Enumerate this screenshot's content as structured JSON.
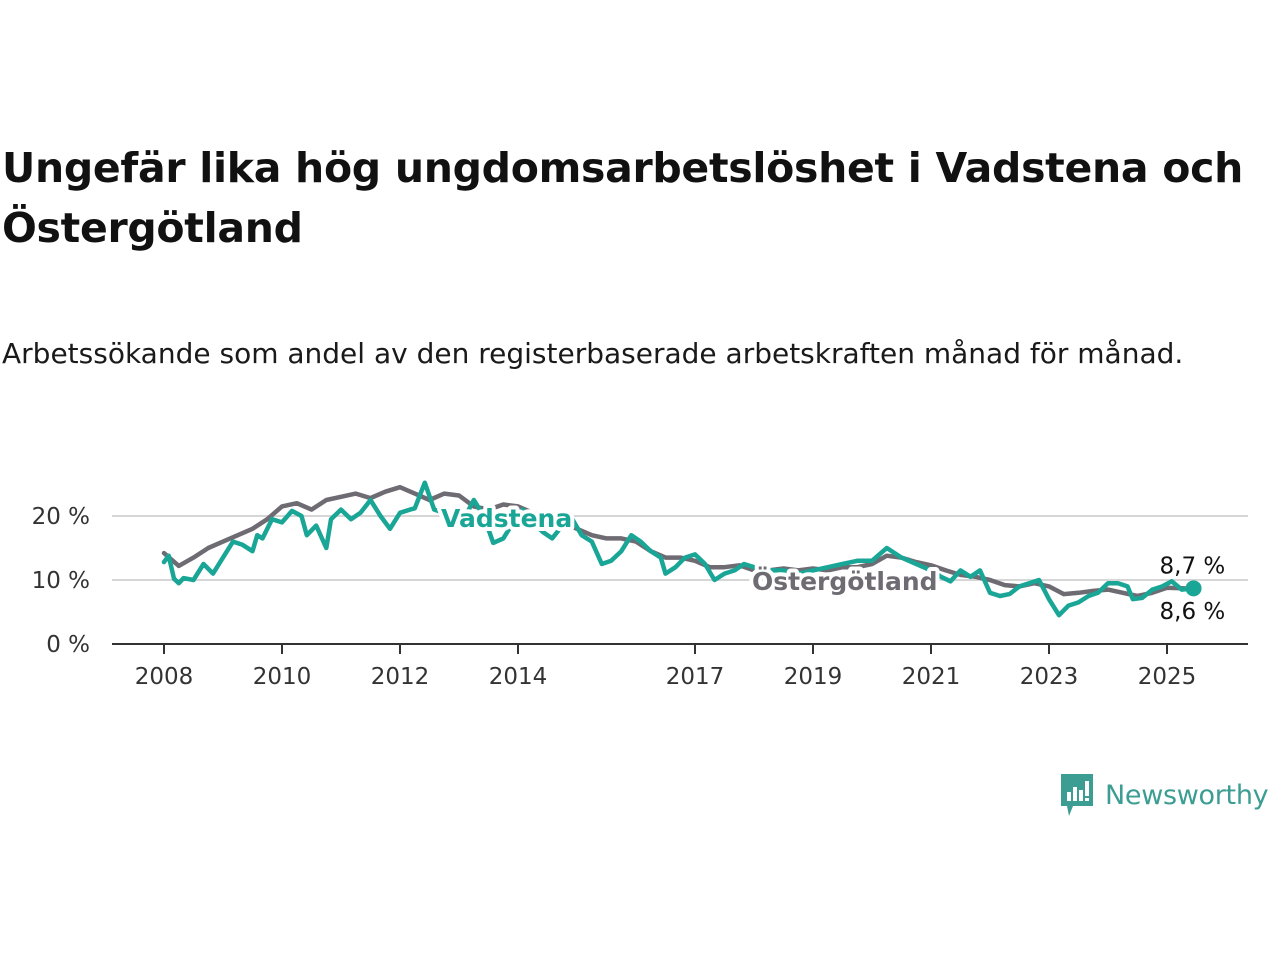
{
  "title": "Ungefär lika hög ungdomsarbetslöshet i Vadstena och Östergötland",
  "subtitle": "Arbetssökande som andel av den registerbaserade arbetskraften månad för månad.",
  "brand": {
    "name": "Newsworthy",
    "icon": "newsworthy-chart-logo-icon",
    "color": "#3c9d93"
  },
  "chart_data": {
    "type": "line",
    "y_ticks": [
      0,
      10,
      20
    ],
    "y_tick_labels": [
      "0 %",
      "10 %",
      "20 %"
    ],
    "x_ticks": [
      2008,
      2010,
      2012,
      2014,
      2017,
      2019,
      2021,
      2023,
      2025
    ],
    "x_tick_labels": [
      "2008",
      "2010",
      "2012",
      "2014",
      "2017",
      "2019",
      "2021",
      "2023",
      "2025"
    ],
    "x_range": [
      2006.75,
      2025.5
    ],
    "y_range": [
      0,
      20
    ],
    "grid": "horizontal",
    "series": [
      {
        "name": "Östergötland",
        "color": "#6e6b73",
        "end_label": "8,6 %",
        "points": [
          [
            2008.0,
            14.2
          ],
          [
            2008.25,
            12.2
          ],
          [
            2008.5,
            13.5
          ],
          [
            2008.75,
            15.0
          ],
          [
            2009.0,
            16.0
          ],
          [
            2009.25,
            17.0
          ],
          [
            2009.5,
            18.0
          ],
          [
            2009.75,
            19.5
          ],
          [
            2010.0,
            21.5
          ],
          [
            2010.25,
            22.0
          ],
          [
            2010.5,
            21.0
          ],
          [
            2010.75,
            22.5
          ],
          [
            2011.0,
            23.0
          ],
          [
            2011.25,
            23.5
          ],
          [
            2011.5,
            22.8
          ],
          [
            2011.75,
            23.8
          ],
          [
            2012.0,
            24.5
          ],
          [
            2012.25,
            23.5
          ],
          [
            2012.5,
            22.5
          ],
          [
            2012.75,
            23.5
          ],
          [
            2013.0,
            23.2
          ],
          [
            2013.25,
            21.5
          ],
          [
            2013.5,
            21.0
          ],
          [
            2013.75,
            21.8
          ],
          [
            2014.0,
            21.5
          ],
          [
            2014.25,
            20.5
          ],
          [
            2014.5,
            20.0
          ],
          [
            2014.75,
            19.0
          ],
          [
            2015.0,
            18.0
          ],
          [
            2015.25,
            17.0
          ],
          [
            2015.5,
            16.5
          ],
          [
            2015.75,
            16.5
          ],
          [
            2016.0,
            16.0
          ],
          [
            2016.25,
            14.5
          ],
          [
            2016.5,
            13.5
          ],
          [
            2016.75,
            13.5
          ],
          [
            2017.0,
            13.0
          ],
          [
            2017.25,
            12.0
          ],
          [
            2017.5,
            12.0
          ],
          [
            2017.75,
            12.3
          ],
          [
            2018.0,
            11.5
          ],
          [
            2018.25,
            11.5
          ],
          [
            2018.5,
            11.8
          ],
          [
            2018.75,
            11.5
          ],
          [
            2019.0,
            11.8
          ],
          [
            2019.25,
            11.5
          ],
          [
            2019.5,
            12.0
          ],
          [
            2019.75,
            12.0
          ],
          [
            2020.0,
            12.5
          ],
          [
            2020.25,
            13.8
          ],
          [
            2020.5,
            13.5
          ],
          [
            2020.75,
            12.8
          ],
          [
            2021.0,
            12.3
          ],
          [
            2021.25,
            11.5
          ],
          [
            2021.5,
            10.8
          ],
          [
            2021.75,
            10.5
          ],
          [
            2022.0,
            10.0
          ],
          [
            2022.25,
            9.2
          ],
          [
            2022.5,
            9.0
          ],
          [
            2022.75,
            9.5
          ],
          [
            2023.0,
            9.0
          ],
          [
            2023.25,
            7.8
          ],
          [
            2023.5,
            8.0
          ],
          [
            2023.75,
            8.3
          ],
          [
            2024.0,
            8.5
          ],
          [
            2024.25,
            8.0
          ],
          [
            2024.5,
            7.5
          ],
          [
            2024.75,
            8.0
          ],
          [
            2025.0,
            8.8
          ],
          [
            2025.25,
            8.7
          ],
          [
            2025.45,
            8.6
          ]
        ]
      },
      {
        "name": "Vadstena",
        "color": "#1aa696",
        "end_label": "8,7 %",
        "points": [
          [
            2008.0,
            12.8
          ],
          [
            2008.08,
            13.8
          ],
          [
            2008.17,
            10.2
          ],
          [
            2008.25,
            9.5
          ],
          [
            2008.33,
            10.3
          ],
          [
            2008.5,
            10.0
          ],
          [
            2008.67,
            12.5
          ],
          [
            2008.83,
            11.0
          ],
          [
            2009.0,
            13.5
          ],
          [
            2009.17,
            16.0
          ],
          [
            2009.33,
            15.5
          ],
          [
            2009.5,
            14.5
          ],
          [
            2009.58,
            17.0
          ],
          [
            2009.67,
            16.5
          ],
          [
            2009.83,
            19.5
          ],
          [
            2010.0,
            19.0
          ],
          [
            2010.17,
            20.8
          ],
          [
            2010.33,
            20.0
          ],
          [
            2010.42,
            17.0
          ],
          [
            2010.58,
            18.5
          ],
          [
            2010.75,
            15.0
          ],
          [
            2010.83,
            19.5
          ],
          [
            2011.0,
            21.0
          ],
          [
            2011.17,
            19.5
          ],
          [
            2011.33,
            20.5
          ],
          [
            2011.5,
            22.5
          ],
          [
            2011.67,
            20.0
          ],
          [
            2011.83,
            18.0
          ],
          [
            2012.0,
            20.5
          ],
          [
            2012.17,
            21.0
          ],
          [
            2012.25,
            21.2
          ],
          [
            2012.42,
            25.2
          ],
          [
            2012.58,
            21.0
          ],
          [
            2012.75,
            20.5
          ],
          [
            2012.92,
            19.2
          ],
          [
            2013.08,
            19.5
          ],
          [
            2013.25,
            22.5
          ],
          [
            2013.42,
            20.0
          ],
          [
            2013.58,
            15.8
          ],
          [
            2013.75,
            16.5
          ],
          [
            2013.92,
            19.0
          ],
          [
            2014.08,
            21.0
          ],
          [
            2014.25,
            19.0
          ],
          [
            2014.42,
            17.5
          ],
          [
            2014.58,
            16.5
          ],
          [
            2014.75,
            18.5
          ],
          [
            2014.92,
            19.5
          ],
          [
            2015.08,
            17.0
          ],
          [
            2015.25,
            16.0
          ],
          [
            2015.42,
            12.5
          ],
          [
            2015.58,
            13.0
          ],
          [
            2015.75,
            14.5
          ],
          [
            2015.92,
            17.0
          ],
          [
            2016.08,
            16.0
          ],
          [
            2016.25,
            14.5
          ],
          [
            2016.42,
            13.5
          ],
          [
            2016.5,
            11.0
          ],
          [
            2016.67,
            12.0
          ],
          [
            2016.83,
            13.5
          ],
          [
            2017.0,
            14.0
          ],
          [
            2017.17,
            12.5
          ],
          [
            2017.33,
            10.0
          ],
          [
            2017.5,
            11.0
          ],
          [
            2017.67,
            11.5
          ],
          [
            2017.83,
            12.5
          ],
          [
            2018.0,
            12.0
          ],
          [
            2018.25,
            11.5
          ],
          [
            2018.5,
            11.5
          ],
          [
            2018.75,
            11.0
          ],
          [
            2019.0,
            11.5
          ],
          [
            2019.25,
            12.0
          ],
          [
            2019.5,
            12.5
          ],
          [
            2019.75,
            13.0
          ],
          [
            2020.0,
            13.0
          ],
          [
            2020.25,
            15.0
          ],
          [
            2020.5,
            13.5
          ],
          [
            2020.75,
            12.5
          ],
          [
            2021.0,
            11.5
          ],
          [
            2021.17,
            10.5
          ],
          [
            2021.33,
            9.8
          ],
          [
            2021.5,
            11.5
          ],
          [
            2021.67,
            10.5
          ],
          [
            2021.83,
            11.5
          ],
          [
            2022.0,
            8.0
          ],
          [
            2022.17,
            7.5
          ],
          [
            2022.33,
            7.8
          ],
          [
            2022.5,
            9.0
          ],
          [
            2022.67,
            9.5
          ],
          [
            2022.83,
            10.0
          ],
          [
            2023.0,
            7.0
          ],
          [
            2023.17,
            4.5
          ],
          [
            2023.33,
            6.0
          ],
          [
            2023.5,
            6.5
          ],
          [
            2023.67,
            7.5
          ],
          [
            2023.83,
            8.0
          ],
          [
            2024.0,
            9.5
          ],
          [
            2024.17,
            9.5
          ],
          [
            2024.33,
            9.0
          ],
          [
            2024.42,
            7.0
          ],
          [
            2024.58,
            7.2
          ],
          [
            2024.75,
            8.5
          ],
          [
            2024.92,
            9.0
          ],
          [
            2025.08,
            9.8
          ],
          [
            2025.25,
            8.5
          ],
          [
            2025.45,
            8.7
          ]
        ]
      }
    ]
  }
}
